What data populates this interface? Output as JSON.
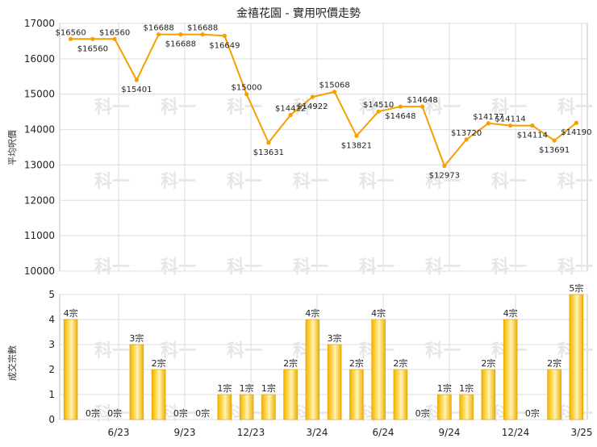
{
  "chart_data": [
    {
      "type": "line",
      "title": "金禧花園 - 實用呎價走勢",
      "ylabel": "平均呎價",
      "ylim": [
        10000,
        17000
      ],
      "y_ticks": [
        "10000",
        "11000",
        "12000",
        "13000",
        "14000",
        "15000",
        "16000",
        "17000"
      ],
      "x_tick_labels": [
        "6/23",
        "9/23",
        "12/23",
        "3/24",
        "6/24",
        "9/24",
        "12/24",
        "3/25"
      ],
      "grid": true,
      "color": "#f5a000",
      "series": [
        {
          "values": [
            16560,
            16560,
            16560,
            15401,
            16688,
            16688,
            16688,
            16649,
            15000,
            13631,
            14412,
            14922,
            15068,
            13821,
            14510,
            14648,
            14648,
            12973,
            13720,
            14177,
            14114,
            14114,
            13691,
            14190
          ],
          "labels": [
            "$16560",
            "$16560",
            "$16560",
            "$15401",
            "$16688",
            "$16688",
            "$16688",
            "$16649",
            "$15000",
            "$13631",
            "$14412",
            "$14922",
            "$15068",
            "$13821",
            "$14510",
            "$14648",
            "$14648",
            "$12973",
            "$13720",
            "$14177",
            "$14114",
            "$14114",
            "$13691",
            "$14190"
          ]
        }
      ]
    },
    {
      "type": "bar",
      "ylabel": "成交宗數",
      "ylim": [
        0,
        5
      ],
      "y_ticks": [
        "0",
        "1",
        "2",
        "3",
        "4",
        "5"
      ],
      "x_tick_labels": [
        "6/23",
        "9/23",
        "12/23",
        "3/24",
        "6/24",
        "9/24",
        "12/24",
        "3/25"
      ],
      "color": "#f5a000",
      "series": [
        {
          "values": [
            4,
            0,
            0,
            3,
            2,
            0,
            0,
            1,
            1,
            1,
            2,
            4,
            3,
            2,
            4,
            2,
            0,
            1,
            1,
            2,
            4,
            0,
            2,
            5
          ],
          "labels": [
            "4宗",
            "0宗",
            "0宗",
            "3宗",
            "2宗",
            "0宗",
            "0宗",
            "1宗",
            "1宗",
            "1宗",
            "2宗",
            "4宗",
            "3宗",
            "2宗",
            "4宗",
            "2宗",
            "0宗",
            "1宗",
            "1宗",
            "2宗",
            "4宗",
            "0宗",
            "2宗",
            "5宗"
          ]
        }
      ]
    }
  ],
  "watermark": "科一"
}
